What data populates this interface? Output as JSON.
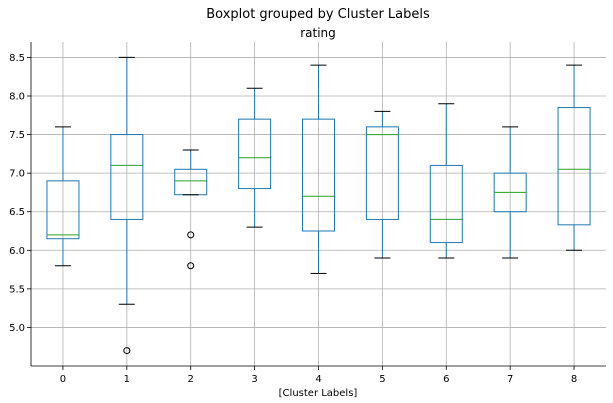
{
  "chart_data": {
    "type": "boxplot",
    "suptitle": "Boxplot grouped by Cluster Labels",
    "title": "rating",
    "xlabel": "[Cluster Labels]",
    "ylabel": "",
    "categories": [
      "0",
      "1",
      "2",
      "3",
      "4",
      "5",
      "6",
      "7",
      "8"
    ],
    "ylim": [
      4.5,
      8.7
    ],
    "yticks": [
      5.0,
      5.5,
      6.0,
      6.5,
      7.0,
      7.5,
      8.0,
      8.5
    ],
    "ytick_labels": [
      "5.0",
      "5.5",
      "6.0",
      "6.5",
      "7.0",
      "7.5",
      "8.0",
      "8.5"
    ],
    "grid": true,
    "colors": {
      "box": "#1f77b4",
      "median": "#2ca02c",
      "cap": "#000000",
      "grid": "#b0b0b0"
    },
    "boxes": [
      {
        "label": "0",
        "whislo": 5.8,
        "q1": 6.15,
        "med": 6.2,
        "q3": 6.9,
        "whishi": 7.6,
        "fliers": []
      },
      {
        "label": "1",
        "whislo": 5.3,
        "q1": 6.4,
        "med": 7.1,
        "q3": 7.5,
        "whishi": 8.5,
        "fliers": [
          4.7
        ]
      },
      {
        "label": "2",
        "whislo": 6.72,
        "q1": 6.72,
        "med": 6.9,
        "q3": 7.05,
        "whishi": 7.3,
        "fliers": [
          6.2,
          5.8
        ]
      },
      {
        "label": "3",
        "whislo": 6.3,
        "q1": 6.8,
        "med": 7.2,
        "q3": 7.7,
        "whishi": 8.1,
        "fliers": []
      },
      {
        "label": "4",
        "whislo": 5.7,
        "q1": 6.25,
        "med": 6.7,
        "q3": 7.7,
        "whishi": 8.4,
        "fliers": []
      },
      {
        "label": "5",
        "whislo": 5.9,
        "q1": 6.4,
        "med": 7.5,
        "q3": 7.6,
        "whishi": 7.8,
        "fliers": []
      },
      {
        "label": "6",
        "whislo": 5.9,
        "q1": 6.1,
        "med": 6.4,
        "q3": 7.1,
        "whishi": 7.9,
        "fliers": []
      },
      {
        "label": "7",
        "whislo": 5.9,
        "q1": 6.5,
        "med": 6.75,
        "q3": 7.0,
        "whishi": 7.6,
        "fliers": []
      },
      {
        "label": "8",
        "whislo": 6.0,
        "q1": 6.33,
        "med": 7.05,
        "q3": 7.85,
        "whishi": 8.4,
        "fliers": []
      }
    ]
  }
}
